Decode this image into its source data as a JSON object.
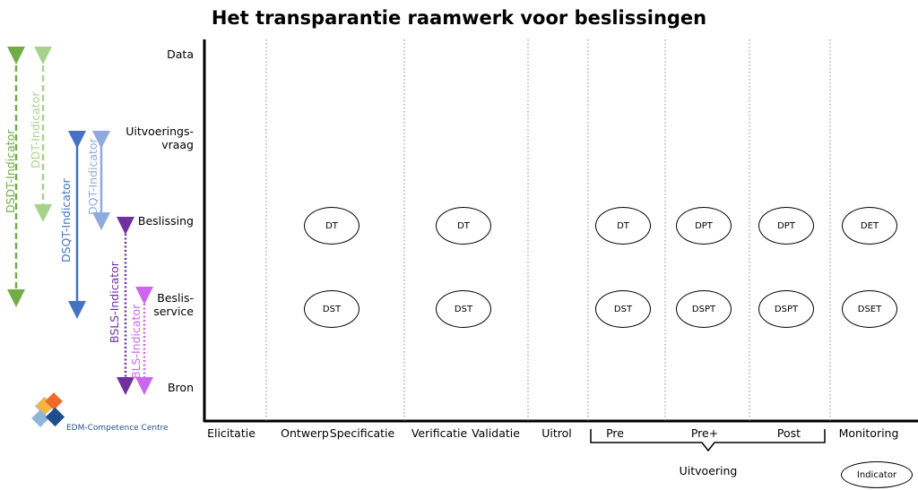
{
  "title": "Het transparantie raamwerk voor beslissingen",
  "rows": [
    {
      "id": "data",
      "label": "Data"
    },
    {
      "id": "uitvoeringsvraag",
      "label": "Uitvoerings-\nvraag"
    },
    {
      "id": "beslissing",
      "label": "Beslissing"
    },
    {
      "id": "beslisservice",
      "label": "Beslis-\nservice"
    },
    {
      "id": "bron",
      "label": "Bron"
    }
  ],
  "columns": [
    {
      "id": "elicitatie",
      "label": "Elicitatie"
    },
    {
      "id": "ontwerp",
      "label": "Ontwerp"
    },
    {
      "id": "specificatie",
      "label": "Specificatie"
    },
    {
      "id": "verificatie",
      "label": "Verificatie"
    },
    {
      "id": "validatie",
      "label": "Validatie"
    },
    {
      "id": "uitrol",
      "label": "Uitrol"
    },
    {
      "id": "pre",
      "label": "Pre"
    },
    {
      "id": "preplus",
      "label": "Pre+"
    },
    {
      "id": "post",
      "label": "Post"
    },
    {
      "id": "monitoring",
      "label": "Monitoring"
    }
  ],
  "group_label": "Uitvoering",
  "nodes": {
    "beslissing": [
      "DT",
      "DT",
      "DT",
      "DPT",
      "DPT",
      "DET"
    ],
    "beslisservice": [
      "DST",
      "DST",
      "DST",
      "DSPT",
      "DSPT",
      "DSET"
    ]
  },
  "indicators": [
    {
      "id": "dsdt",
      "label": "DSDT-Indicator",
      "color": "#70ad47",
      "style": "dashed"
    },
    {
      "id": "ddt",
      "label": "DDT-Indicator",
      "color": "#a9d18e",
      "style": "dashed"
    },
    {
      "id": "dsqt",
      "label": "DSQT-Indicator",
      "color": "#4472c4",
      "style": "solid"
    },
    {
      "id": "dqt",
      "label": "DQT-Indicator",
      "color": "#8faadc",
      "style": "solid"
    },
    {
      "id": "bsls",
      "label": "BSLS-Indicator",
      "color": "#7030a0",
      "style": "dotted"
    },
    {
      "id": "bls",
      "label": "BLS-Indicator",
      "color": "#cc66ee",
      "style": "dotted"
    }
  ],
  "logo_text": "EDM-Competence Centre",
  "legend_label": "Indicator"
}
